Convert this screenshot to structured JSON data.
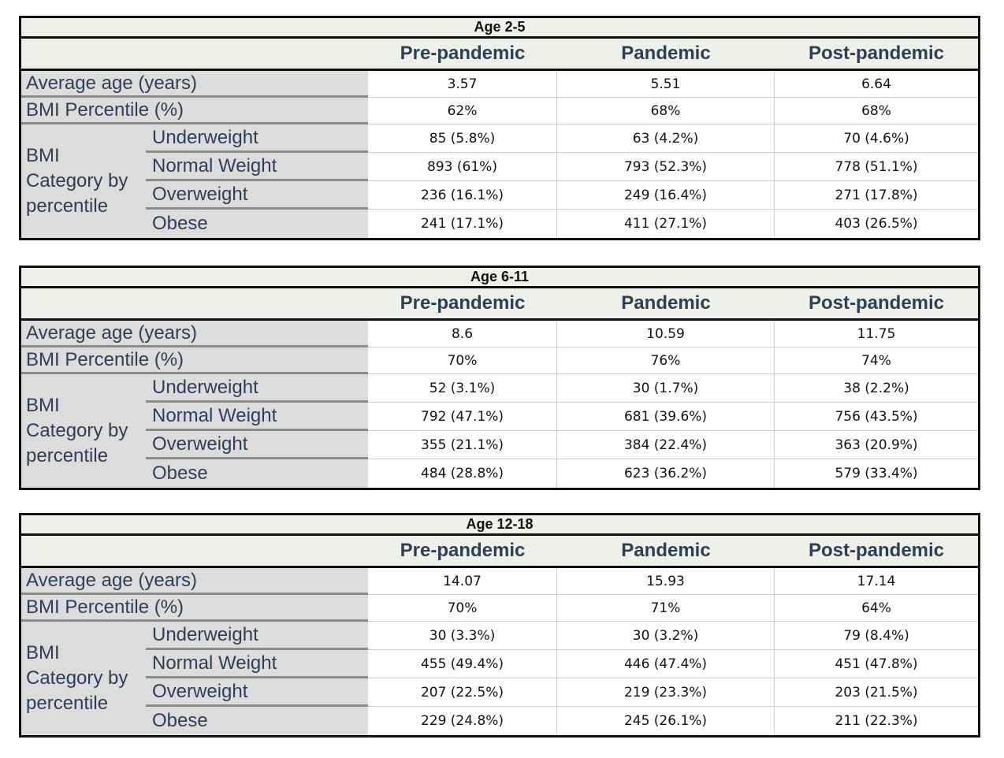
{
  "columns": [
    "Pre-pandemic",
    "Pandemic",
    "Post-pandemic"
  ],
  "row_labels": {
    "average_age": "Average age (years)",
    "bmi_percentile": "BMI Percentile (%)",
    "bmi_category": "BMI Category by percentile",
    "bmi_category_line1": "BMI",
    "bmi_category_line2": "Category by",
    "bmi_category_line3": "percentile",
    "underweight": "Underweight",
    "normal": "Normal Weight",
    "overweight": "Overweight",
    "obese": "Obese"
  },
  "tables": [
    {
      "title": "Age 2-5",
      "average_age": [
        "3.57",
        "5.51",
        "6.64"
      ],
      "bmi_percentile": [
        "62%",
        "68%",
        "68%"
      ],
      "underweight": [
        "85 (5.8%)",
        "63 (4.2%)",
        "70 (4.6%)"
      ],
      "normal": [
        "893 (61%)",
        "793 (52.3%)",
        "778 (51.1%)"
      ],
      "overweight": [
        "236 (16.1%)",
        "249 (16.4%)",
        "271 (17.8%)"
      ],
      "obese": [
        "241 (17.1%)",
        "411 (27.1%)",
        "403 (26.5%)"
      ]
    },
    {
      "title": "Age 6-11",
      "average_age": [
        "8.6",
        "10.59",
        "11.75"
      ],
      "bmi_percentile": [
        "70%",
        "76%",
        "74%"
      ],
      "underweight": [
        "52 (3.1%)",
        "30 (1.7%)",
        "38 (2.2%)"
      ],
      "normal": [
        "792 (47.1%)",
        "681 (39.6%)",
        "756 (43.5%)"
      ],
      "overweight": [
        "355 (21.1%)",
        "384 (22.4%)",
        "363 (20.9%)"
      ],
      "obese": [
        "484 (28.8%)",
        "623 (36.2%)",
        "579 (33.4%)"
      ]
    },
    {
      "title": "Age 12-18",
      "average_age": [
        "14.07",
        "15.93",
        "17.14"
      ],
      "bmi_percentile": [
        "70%",
        "71%",
        "64%"
      ],
      "underweight": [
        "30 (3.3%)",
        "30 (3.2%)",
        "79 (8.4%)"
      ],
      "normal": [
        "455 (49.4%)",
        "446 (47.4%)",
        "451 (47.8%)"
      ],
      "overweight": [
        "207 (22.5%)",
        "219 (23.3%)",
        "203 (21.5%)"
      ],
      "obese": [
        "229 (24.8%)",
        "245 (26.1%)",
        "211 (22.3%)"
      ]
    }
  ]
}
